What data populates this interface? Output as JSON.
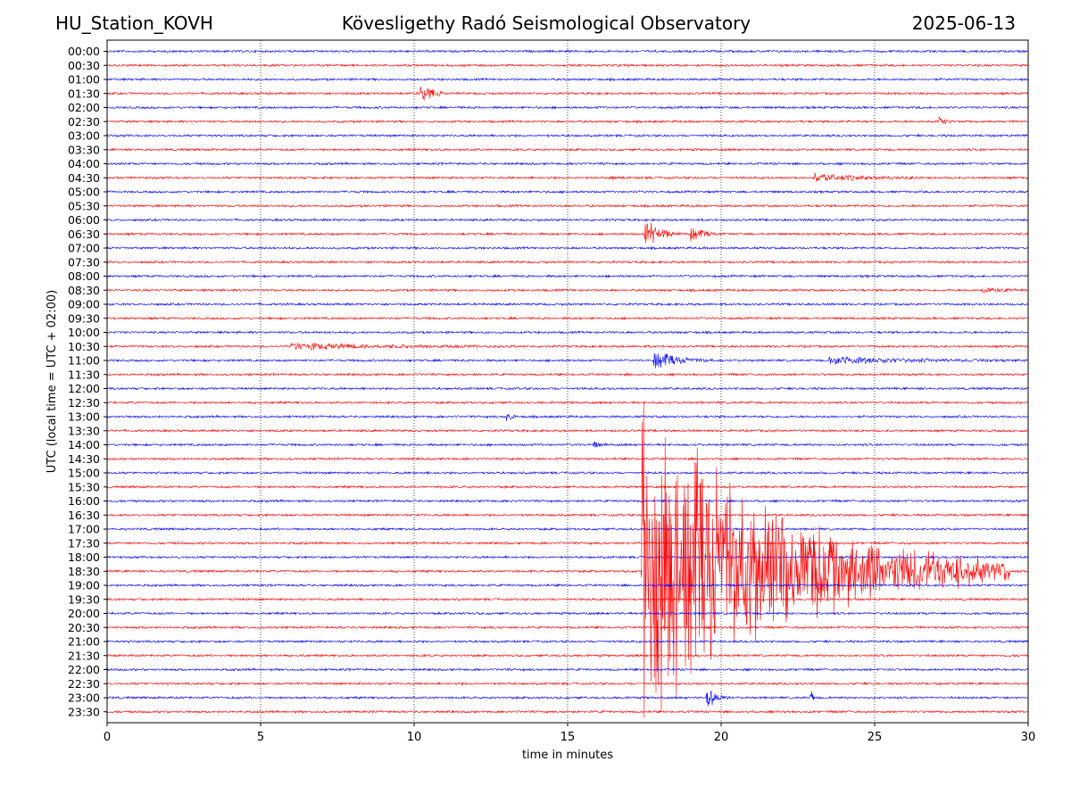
{
  "header": {
    "station": "HU_Station_KOVH",
    "title": "Kövesligethy Radó Seismological Observatory",
    "date": "2025-06-13"
  },
  "chart_data": {
    "type": "line",
    "xlabel": "time in minutes",
    "ylabel": "UTC (local time = UTC + 02:00)",
    "xlim": [
      0,
      30
    ],
    "x_ticks": [
      0,
      5,
      10,
      15,
      20,
      25,
      30
    ],
    "grid": "vertical dotted lines at x ticks",
    "row_labels": [
      "00:00",
      "00:30",
      "01:00",
      "01:30",
      "02:00",
      "02:30",
      "03:00",
      "03:30",
      "04:00",
      "04:30",
      "05:00",
      "05:30",
      "06:00",
      "06:30",
      "07:00",
      "07:30",
      "08:00",
      "08:30",
      "09:00",
      "09:30",
      "10:00",
      "10:30",
      "11:00",
      "11:30",
      "12:00",
      "12:30",
      "13:00",
      "13:30",
      "14:00",
      "14:30",
      "15:00",
      "15:30",
      "16:00",
      "16:30",
      "17:00",
      "17:30",
      "18:00",
      "18:30",
      "19:00",
      "19:30",
      "20:00",
      "20:30",
      "21:00",
      "21:30",
      "22:00",
      "22:30",
      "23:00",
      "23:30"
    ],
    "trace_colors": [
      "#0000ff",
      "#ff0000"
    ],
    "events": [
      {
        "row": "01:30",
        "start_min": 10.2,
        "duration_min": 0.8,
        "amplitude": 0.9
      },
      {
        "row": "02:30",
        "start_min": 27.1,
        "duration_min": 0.5,
        "amplitude": 0.35
      },
      {
        "row": "04:30",
        "start_min": 16.3,
        "duration_min": 0.6,
        "amplitude": 0.2
      },
      {
        "row": "04:30",
        "start_min": 23.0,
        "duration_min": 3.5,
        "amplitude": 0.25
      },
      {
        "row": "06:30",
        "start_min": 17.5,
        "duration_min": 1.2,
        "amplitude": 0.95
      },
      {
        "row": "06:30",
        "start_min": 19.0,
        "duration_min": 0.9,
        "amplitude": 0.5
      },
      {
        "row": "08:30",
        "start_min": 28.5,
        "duration_min": 1.5,
        "amplitude": 0.22
      },
      {
        "row": "10:30",
        "start_min": 6.0,
        "duration_min": 7.5,
        "amplitude": 0.18
      },
      {
        "row": "11:00",
        "start_min": 17.8,
        "duration_min": 2.0,
        "amplitude": 0.55
      },
      {
        "row": "11:00",
        "start_min": 23.5,
        "duration_min": 6.5,
        "amplitude": 0.22
      },
      {
        "row": "13:00",
        "start_min": 13.0,
        "duration_min": 0.4,
        "amplitude": 0.3
      },
      {
        "row": "14:00",
        "start_min": 15.8,
        "duration_min": 0.5,
        "amplitude": 0.3
      },
      {
        "row": "18:30",
        "start_min": 17.4,
        "duration_min": 12.0,
        "amplitude": 9.5
      },
      {
        "row": "23:00",
        "start_min": 19.5,
        "duration_min": 0.8,
        "amplitude": 0.7
      },
      {
        "row": "23:00",
        "start_min": 22.9,
        "duration_min": 0.2,
        "amplitude": 0.6
      }
    ]
  }
}
